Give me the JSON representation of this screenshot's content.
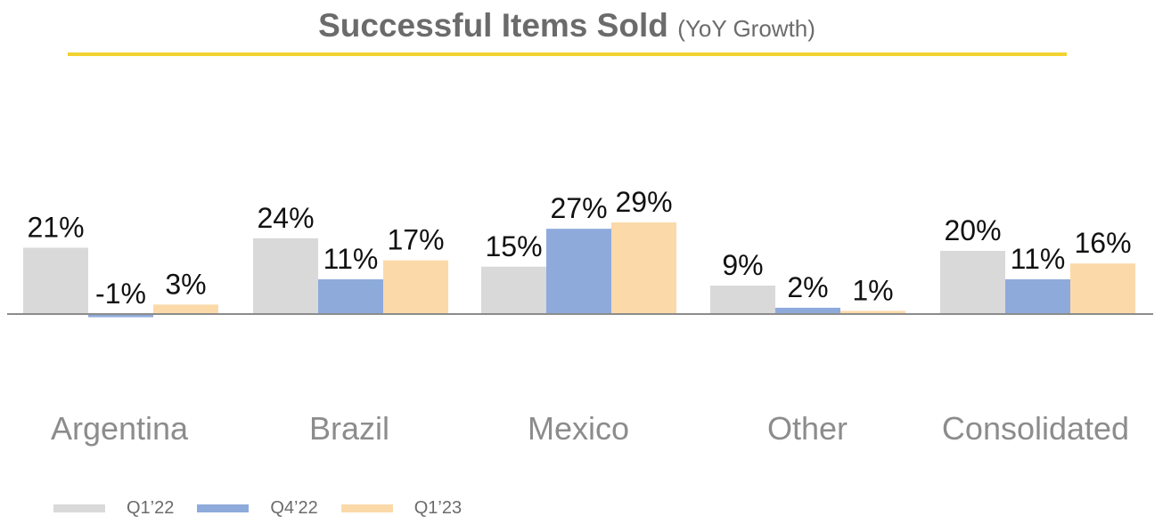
{
  "header": {
    "title": "Successful Items Sold",
    "subtitle": "(YoY Growth)"
  },
  "colors": {
    "title_text": "#6b6b6b",
    "title_rule": "#f2d231",
    "axis": "#8c8c8c",
    "category_text": "#8c8c8c",
    "value_text": "#111111"
  },
  "chart_data": {
    "type": "bar",
    "categories": [
      "Argentina",
      "Brazil",
      "Mexico",
      "Other",
      "Consolidated"
    ],
    "series": [
      {
        "name": "Q1’22",
        "color": "#d9d9d9",
        "values": [
          21,
          24,
          15,
          9,
          20
        ],
        "labels": [
          "21%",
          "24%",
          "15%",
          "9%",
          "20%"
        ]
      },
      {
        "name": "Q4’22",
        "color": "#8eaadb",
        "values": [
          -1,
          11,
          27,
          2,
          11
        ],
        "labels": [
          "-1%",
          "11%",
          "27%",
          "2%",
          "11%"
        ]
      },
      {
        "name": "Q1’23",
        "color": "#fcd9a9",
        "values": [
          3,
          17,
          29,
          1,
          16
        ],
        "labels": [
          "3%",
          "17%",
          "29%",
          "1%",
          "16%"
        ]
      }
    ],
    "unit": "%",
    "grid": false,
    "legend_position": "bottom-left"
  }
}
